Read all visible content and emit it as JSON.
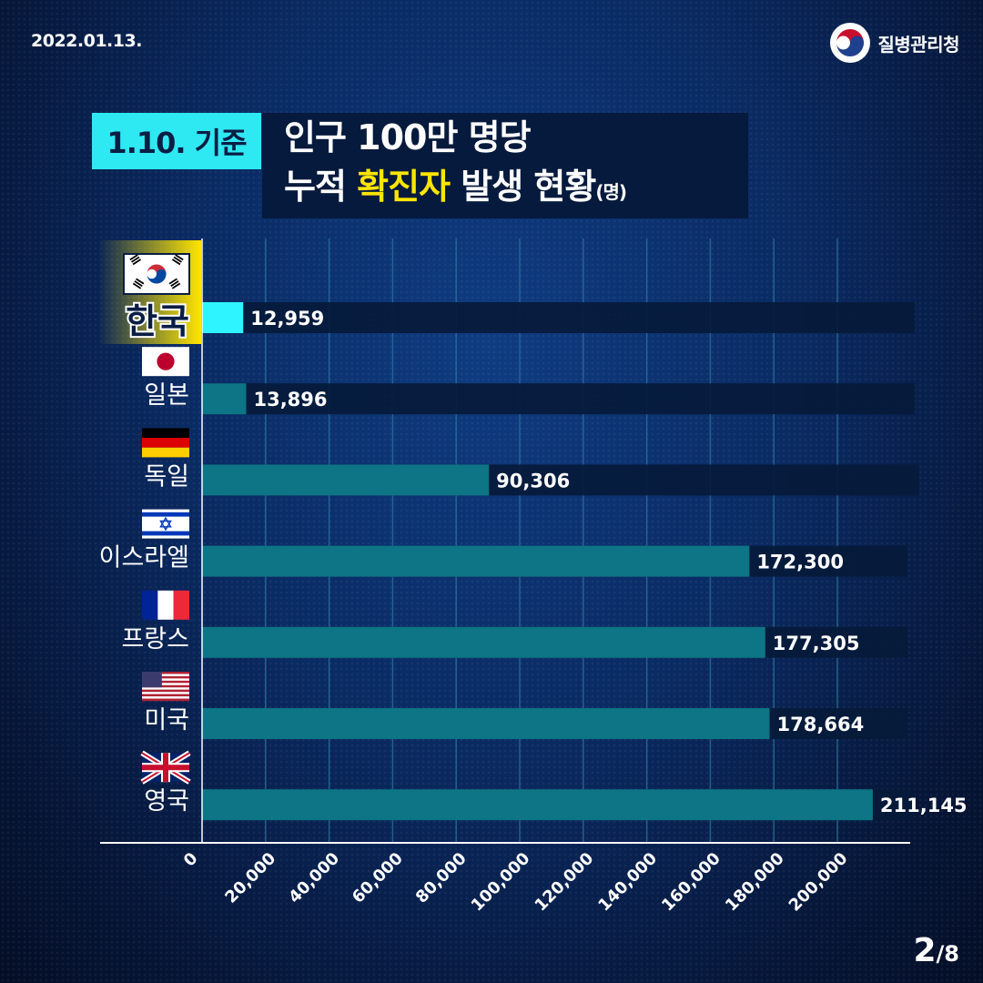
{
  "header": {
    "date": "2022.01.13.",
    "org_name": "질병관리청",
    "org_icon": "taegeuk-logo-icon"
  },
  "title": {
    "tag": "1.10. 기준",
    "line1": "인구 100만 명당",
    "line2_pre": "누적 ",
    "line2_highlight": "확진자",
    "line2_post": " 발생 현황",
    "unit": "(명)"
  },
  "pagination": {
    "current": "2",
    "total": "/8"
  },
  "colors": {
    "bar": "#0d7585",
    "bar_highlight": "#2ef4ff",
    "track": "#061a3a",
    "highlight_title": "#ffe500",
    "tag_bg": "#2ee8f2"
  },
  "chart_data": {
    "type": "bar",
    "orientation": "horizontal",
    "title": "인구 100만 명당 누적 확진자 발생 현황(명)",
    "categories": [
      "한국",
      "일본",
      "독일",
      "이스라엘",
      "프랑스",
      "미국",
      "영국"
    ],
    "flags": [
      "korea-flag-icon",
      "japan-flag-icon",
      "germany-flag-icon",
      "israel-flag-icon",
      "france-flag-icon",
      "usa-flag-icon",
      "uk-flag-icon"
    ],
    "values": [
      12959,
      13896,
      90306,
      172300,
      177305,
      178664,
      211145
    ],
    "value_labels": [
      "12,959",
      "13,896",
      "90,306",
      "172,300",
      "177,305",
      "178,664",
      "211,145"
    ],
    "highlight_index": 0,
    "xlim": [
      0,
      200000
    ],
    "xticks": [
      0,
      20000,
      40000,
      60000,
      80000,
      100000,
      120000,
      140000,
      160000,
      180000,
      200000
    ],
    "xtick_labels": [
      "0",
      "20,000",
      "40,000",
      "60,000",
      "80,000",
      "100,000",
      "120,000",
      "140,000",
      "160,000",
      "180,000",
      "200,000"
    ],
    "grid": true
  }
}
